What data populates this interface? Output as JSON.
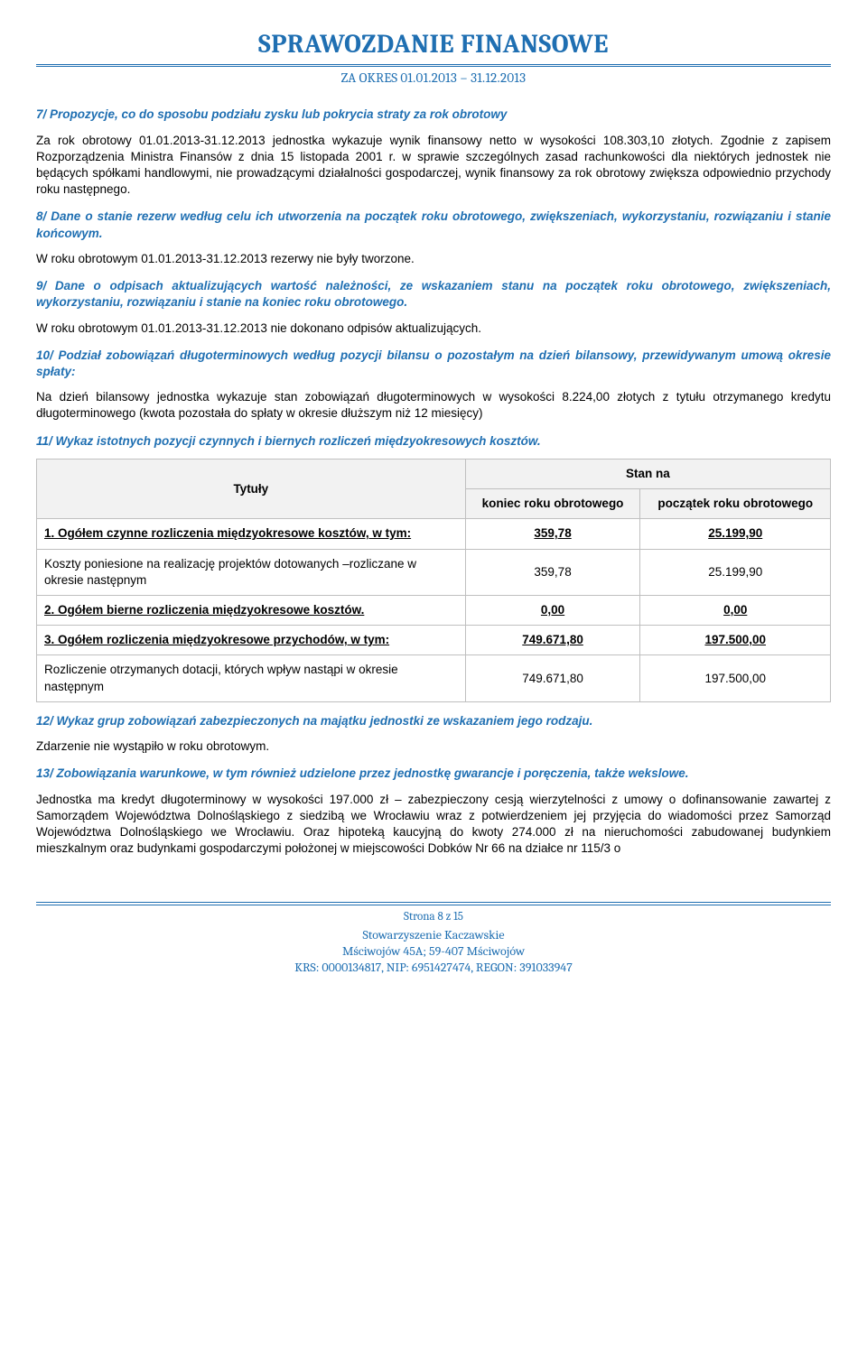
{
  "header": {
    "title": "SPRAWOZDANIE FINANSOWE",
    "subtitle_prefix": "ZA OKRES ",
    "period": "01.01.2013 – 31.12.2013"
  },
  "section7": {
    "heading": "7/ Propozycje, co do sposobu podziału zysku lub pokrycia straty za rok obrotowy",
    "body": "Za rok obrotowy 01.01.2013-31.12.2013 jednostka wykazuje wynik finansowy netto w wysokości 108.303,10 złotych. Zgodnie z zapisem Rozporządzenia Ministra Finansów z dnia 15 listopada 2001 r. w sprawie szczególnych zasad rachunkowości dla niektórych jednostek nie będących spółkami handlowymi, nie prowadzącymi działalności gospodarczej, wynik finansowy za rok obrotowy zwiększa odpowiednio przychody roku następnego."
  },
  "section8": {
    "heading": "8/ Dane o stanie rezerw według celu ich utworzenia na początek roku obrotowego, zwiększeniach, wykorzystaniu, rozwiązaniu i stanie końcowym.",
    "body": "W roku obrotowym 01.01.2013-31.12.2013 rezerwy nie były tworzone."
  },
  "section9": {
    "heading": "9/ Dane o odpisach aktualizujących wartość należności, ze wskazaniem stanu na początek roku obrotowego, zwiększeniach, wykorzystaniu, rozwiązaniu i stanie na koniec roku obrotowego.",
    "body": "W roku obrotowym 01.01.2013-31.12.2013 nie dokonano odpisów aktualizujących."
  },
  "section10": {
    "heading": "10/ Podział zobowiązań długoterminowych według pozycji bilansu o pozostałym na dzień bilansowy, przewidywanym umową okresie spłaty:",
    "body": "Na dzień bilansowy jednostka wykazuje stan zobowiązań długoterminowych w wysokości 8.224,00 złotych z tytułu otrzymanego kredytu długoterminowego (kwota pozostała do spłaty w okresie dłuższym niż 12 miesięcy)"
  },
  "section11": {
    "heading": "11/ Wykaz istotnych pozycji czynnych i biernych rozliczeń międzyokresowych kosztów.",
    "table": {
      "col_tytuly": "Tytuły",
      "col_stan_na": "Stan na",
      "col_end": "koniec roku obrotowego",
      "col_start": "początek roku obrotowego",
      "rows": [
        {
          "label": "1. Ogółem czynne rozliczenia międzyokresowe kosztów, w tym:",
          "end": "359,78",
          "start": "25.199,90",
          "bold": true,
          "underline": true
        },
        {
          "label": "Koszty poniesione na realizację projektów dotowanych –rozliczane w okresie następnym",
          "end": "359,78",
          "start": "25.199,90",
          "bold": false,
          "underline": false
        },
        {
          "label": "2. Ogółem bierne rozliczenia międzyokresowe kosztów.",
          "end": "0,00",
          "start": "0,00",
          "bold": true,
          "underline": true
        },
        {
          "label": "3. Ogółem rozliczenia międzyokresowe przychodów, w tym:",
          "end": "749.671,80",
          "start": "197.500,00",
          "bold": true,
          "underline": true
        },
        {
          "label": "Rozliczenie otrzymanych dotacji, których wpływ nastąpi w okresie następnym",
          "end": "749.671,80",
          "start": "197.500,00",
          "bold": false,
          "underline": false
        }
      ]
    }
  },
  "section12": {
    "heading": "12/ Wykaz grup zobowiązań zabezpieczonych na majątku jednostki ze wskazaniem jego rodzaju.",
    "body": "Zdarzenie nie wystąpiło w roku obrotowym."
  },
  "section13": {
    "heading": "13/ Zobowiązania warunkowe, w tym również udzielone przez jednostkę gwarancje i poręczenia, także wekslowe.",
    "body": "Jednostka ma kredyt długoterminowy w wysokości 197.000 zł – zabezpieczony cesją wierzytelności z umowy o dofinansowanie zawartej z Samorządem Województwa Dolnośląskiego z siedzibą we Wrocławiu wraz z potwierdzeniem jej przyjęcia do wiadomości przez Samorząd Województwa Dolnośląskiego we Wrocławiu. Oraz hipoteką kaucyjną do kwoty 274.000 zł na nieruchomości zabudowanej budynkiem mieszkalnym oraz budynkami gospodarczymi położonej w miejscowości Dobków Nr 66 na działce nr 115/3 o"
  },
  "footer": {
    "page": "Strona 8 z 15",
    "line1": "Stowarzyszenie Kaczawskie",
    "line2": "Mściwojów 45A; 59-407 Mściwojów",
    "line3": "KRS: 0000134817, NIP: 6951427474, REGON: 391033947"
  },
  "style": {
    "accent_color": "#1f6fb2",
    "table_border_color": "#bfbfbf",
    "table_header_bg": "#f2f2f2",
    "font_body": "Arial, Helvetica, sans-serif",
    "font_headings": "Cambria, Georgia, serif",
    "font_size_body": 13.5,
    "font_size_title": 29
  }
}
